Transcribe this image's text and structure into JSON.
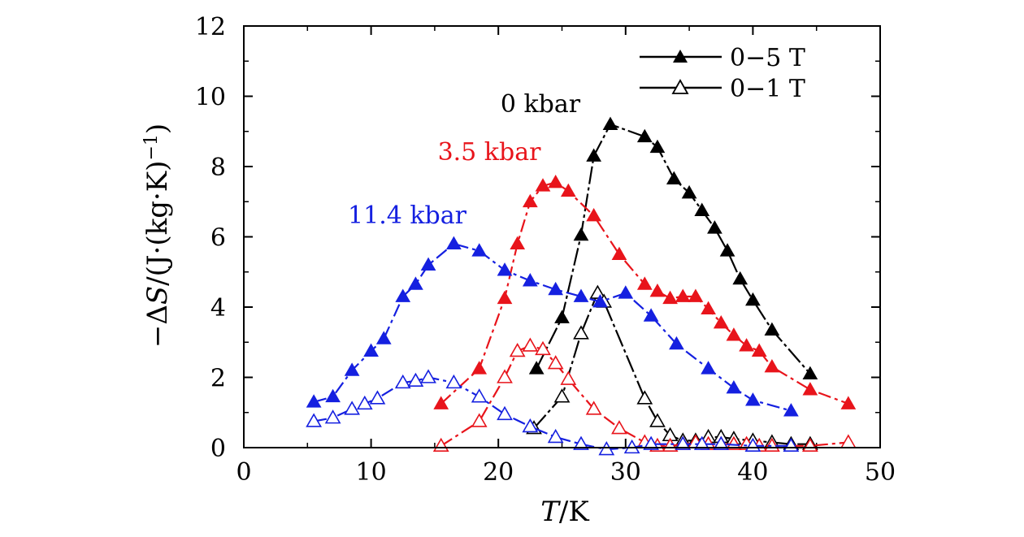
{
  "chart_data": {
    "type": "line",
    "xlabel_italic": "T",
    "xlabel_rest": "/K",
    "ylabel_prefix": "−Δ",
    "ylabel_italic": "S",
    "ylabel_rest": "/(J·(kg·K)",
    "ylabel_sup": "−1",
    "ylabel_close": ")",
    "xlim": [
      0,
      50
    ],
    "ylim": [
      0,
      12
    ],
    "xticks": [
      0,
      10,
      20,
      30,
      40,
      50
    ],
    "yticks": [
      0,
      2,
      4,
      6,
      8,
      10,
      12
    ],
    "legend": {
      "position": "top-right",
      "entries": [
        {
          "label": "0−5 T",
          "marker": "filled-triangle"
        },
        {
          "label": "0−1 T",
          "marker": "open-triangle"
        }
      ]
    },
    "colors": {
      "0 kbar": "#000000",
      "3.5 kbar": "#e8141b",
      "11.4 kbar": "#1520e0"
    },
    "annotations": [
      {
        "text": "0 kbar",
        "color": "#000000"
      },
      {
        "text": "3.5 kbar",
        "color": "#e8141b"
      },
      {
        "text": "11.4 kbar",
        "color": "#1520e0"
      }
    ],
    "series": [
      {
        "name": "0 kbar, 0−5 T",
        "field": "0-5 T",
        "pressure": "0 kbar",
        "color": "#000000",
        "filled": true,
        "x": [
          23.0,
          25.0,
          26.5,
          27.5,
          28.8,
          31.5,
          32.5,
          33.8,
          35.0,
          36.0,
          37.0,
          38.0,
          39.0,
          40.0,
          41.5,
          44.5
        ],
        "y": [
          2.25,
          3.7,
          6.05,
          8.3,
          9.2,
          8.85,
          8.55,
          7.65,
          7.25,
          6.75,
          6.25,
          5.6,
          4.8,
          4.2,
          3.35,
          2.1
        ]
      },
      {
        "name": "0 kbar, 0−1 T",
        "field": "0-1 T",
        "pressure": "0 kbar",
        "color": "#000000",
        "filled": false,
        "x": [
          22.8,
          25.0,
          26.5,
          27.8,
          28.3,
          31.5,
          32.5,
          33.5,
          34.5,
          35.5,
          36.5,
          37.5,
          38.5,
          40.0,
          41.5,
          43.0,
          44.5
        ],
        "y": [
          0.55,
          1.45,
          3.25,
          4.4,
          4.15,
          1.4,
          0.75,
          0.35,
          0.2,
          0.2,
          0.3,
          0.3,
          0.25,
          0.2,
          0.15,
          0.1,
          0.1
        ]
      },
      {
        "name": "3.5 kbar, 0−5 T",
        "field": "0-5 T",
        "pressure": "3.5 kbar",
        "color": "#e8141b",
        "filled": true,
        "x": [
          15.5,
          18.5,
          20.5,
          21.5,
          22.5,
          23.5,
          24.5,
          25.5,
          27.5,
          29.5,
          31.5,
          32.5,
          33.5,
          34.5,
          35.5,
          36.5,
          37.5,
          38.5,
          39.5,
          40.5,
          41.5,
          44.5,
          47.5
        ],
        "y": [
          1.25,
          2.25,
          4.25,
          5.8,
          7.0,
          7.45,
          7.55,
          7.3,
          6.6,
          5.5,
          4.65,
          4.45,
          4.25,
          4.3,
          4.3,
          3.95,
          3.55,
          3.2,
          2.9,
          2.75,
          2.3,
          1.65,
          1.25
        ]
      },
      {
        "name": "3.5 kbar, 0−1 T",
        "field": "0-1 T",
        "pressure": "3.5 kbar",
        "color": "#e8141b",
        "filled": false,
        "x": [
          15.5,
          18.5,
          20.5,
          21.5,
          22.5,
          23.5,
          24.5,
          25.5,
          27.5,
          29.5,
          31.5,
          32.5,
          33.5,
          34.5,
          35.5,
          36.5,
          37.5,
          38.5,
          39.5,
          40.5,
          41.5,
          44.5,
          47.5
        ],
        "y": [
          0.05,
          0.75,
          2.0,
          2.75,
          2.9,
          2.8,
          2.4,
          1.95,
          1.1,
          0.55,
          0.15,
          0.05,
          0.05,
          0.1,
          0.15,
          0.1,
          0.1,
          0.1,
          0.1,
          0.05,
          0.05,
          0.05,
          0.15
        ]
      },
      {
        "name": "11.4 kbar, 0−5 T",
        "field": "0-5 T",
        "pressure": "11.4 kbar",
        "color": "#1520e0",
        "filled": true,
        "x": [
          5.5,
          7.0,
          8.5,
          10.0,
          11.0,
          12.5,
          13.5,
          14.5,
          16.5,
          18.5,
          20.5,
          22.5,
          24.5,
          26.5,
          28.0,
          30.0,
          32.0,
          34.0,
          36.5,
          38.5,
          40.0,
          43.0
        ],
        "y": [
          1.3,
          1.45,
          2.2,
          2.75,
          3.1,
          4.3,
          4.65,
          5.2,
          5.8,
          5.6,
          5.05,
          4.75,
          4.5,
          4.3,
          4.15,
          4.4,
          3.75,
          2.95,
          2.25,
          1.7,
          1.35,
          1.05
        ]
      },
      {
        "name": "11.4 kbar, 0−1 T",
        "field": "0-1 T",
        "pressure": "11.4 kbar",
        "color": "#1520e0",
        "filled": false,
        "x": [
          5.5,
          7.0,
          8.5,
          9.5,
          10.5,
          12.5,
          13.5,
          14.5,
          16.5,
          18.5,
          20.5,
          22.5,
          24.5,
          26.5,
          28.5,
          30.5,
          32.0,
          34.5,
          36.0,
          37.5,
          40.0,
          43.0
        ],
        "y": [
          0.75,
          0.85,
          1.1,
          1.25,
          1.4,
          1.85,
          1.9,
          2.0,
          1.85,
          1.45,
          0.95,
          0.6,
          0.3,
          0.1,
          -0.05,
          0.0,
          0.1,
          0.1,
          0.1,
          0.1,
          0.05,
          0.05
        ]
      }
    ]
  }
}
